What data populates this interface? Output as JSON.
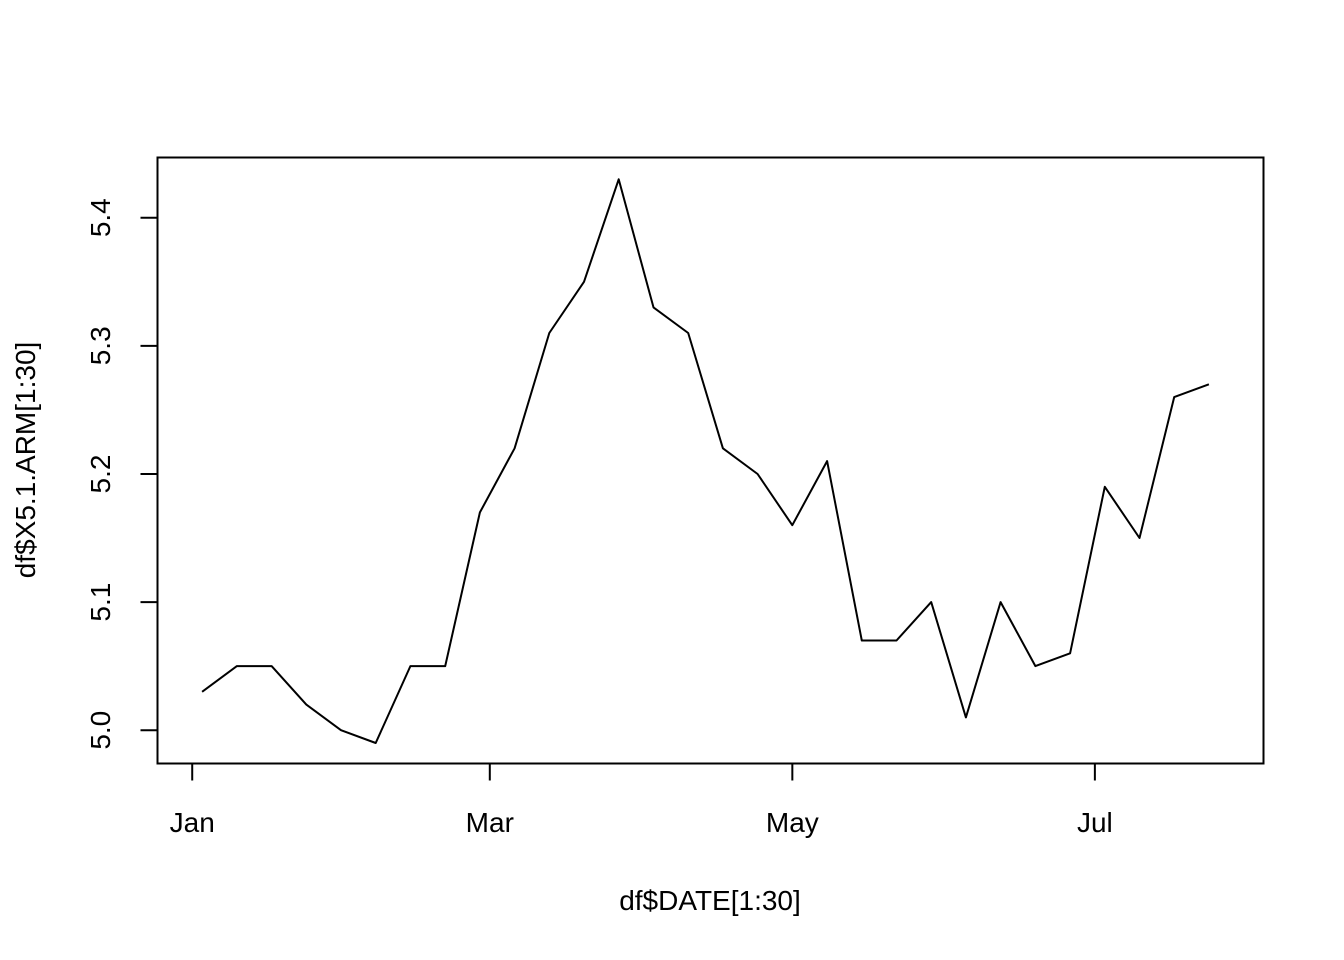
{
  "chart_data": {
    "type": "line",
    "xlabel": "df$DATE[1:30]",
    "ylabel": "df$X5.1.ARM[1:30]",
    "x_tick_labels": [
      "Jan",
      "Mar",
      "May",
      "Jul"
    ],
    "x_tick_dates": [
      "2008-01-01",
      "2008-03-01",
      "2008-05-01",
      "2008-07-01"
    ],
    "y_ticks": [
      5.0,
      5.1,
      5.2,
      5.3,
      5.4
    ],
    "y_tick_labels": [
      "5.0",
      "5.1",
      "5.2",
      "5.3",
      "5.4"
    ],
    "xlim": [
      "2007-12-25",
      "2008-08-04"
    ],
    "ylim": [
      4.974,
      5.447
    ],
    "grid": false,
    "series": [
      {
        "x": [
          "2008-01-03",
          "2008-01-10",
          "2008-01-17",
          "2008-01-24",
          "2008-01-31",
          "2008-02-07",
          "2008-02-14",
          "2008-02-21",
          "2008-02-28",
          "2008-03-06",
          "2008-03-13",
          "2008-03-20",
          "2008-03-27",
          "2008-04-03",
          "2008-04-10",
          "2008-04-17",
          "2008-04-24",
          "2008-05-01",
          "2008-05-08",
          "2008-05-15",
          "2008-05-22",
          "2008-05-29",
          "2008-06-05",
          "2008-06-12",
          "2008-06-19",
          "2008-06-26",
          "2008-07-03",
          "2008-07-10",
          "2008-07-17",
          "2008-07-24"
        ],
        "values": [
          5.03,
          5.05,
          5.05,
          5.02,
          5.0,
          4.99,
          5.05,
          5.05,
          5.17,
          5.22,
          5.31,
          5.35,
          5.43,
          5.33,
          5.31,
          5.22,
          5.2,
          5.16,
          5.21,
          5.07,
          5.07,
          5.1,
          5.01,
          5.1,
          5.05,
          5.06,
          5.19,
          5.15,
          5.26,
          5.27
        ],
        "color": "#000000"
      }
    ]
  }
}
